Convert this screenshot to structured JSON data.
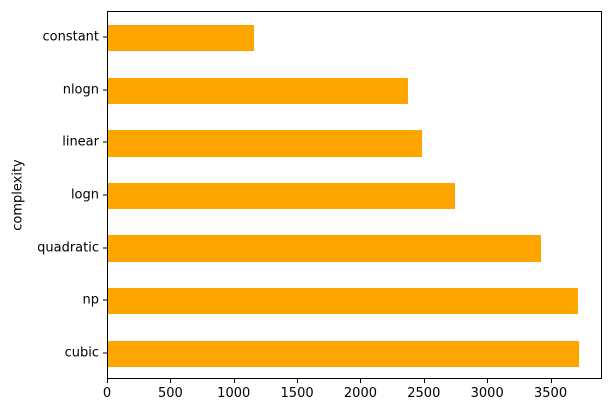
{
  "figure": {
    "background": "#ffffff",
    "bar_color": "#FFA500",
    "spine_color": "#000000",
    "text_color": "#000000"
  },
  "chart_data": {
    "type": "bar",
    "orientation": "horizontal",
    "title": "",
    "xlabel": "",
    "ylabel": "complexity",
    "categories_top_to_bottom": [
      "constant",
      "nlogn",
      "linear",
      "logn",
      "quadratic",
      "np",
      "cubic"
    ],
    "values_top_to_bottom": [
      1150,
      2370,
      2480,
      2740,
      3420,
      3710,
      3720
    ],
    "xlim": [
      0,
      3906
    ],
    "xticks": [
      0,
      500,
      1000,
      1500,
      2000,
      2500,
      3000,
      3500
    ],
    "bar_fraction": 0.5,
    "grid": false,
    "legend": false
  }
}
